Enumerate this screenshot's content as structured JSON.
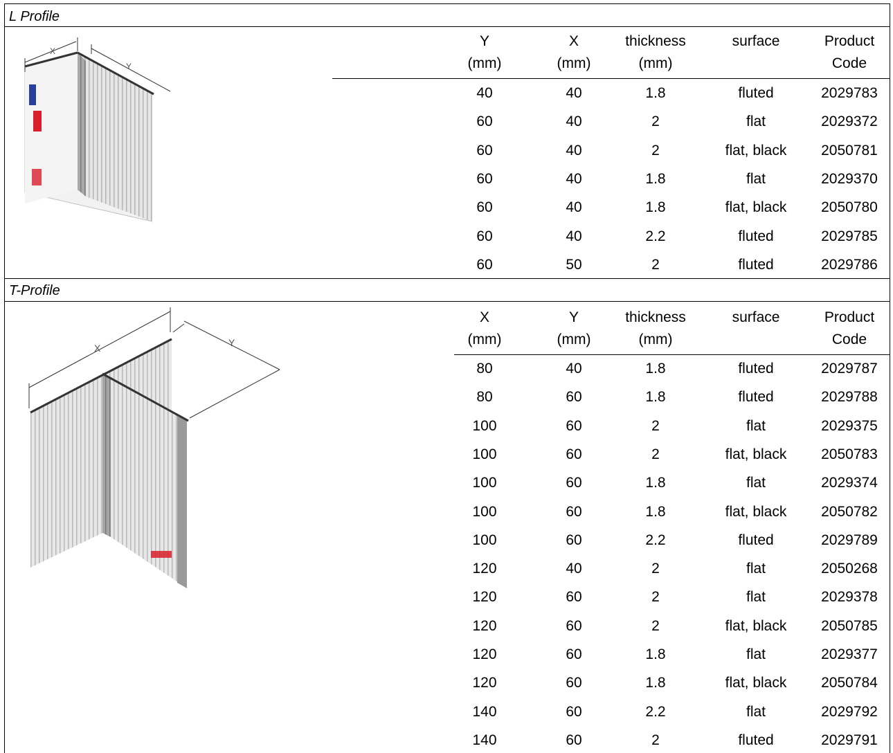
{
  "l_profile": {
    "title": "L Profile",
    "headers": [
      {
        "line1": "Y",
        "line2": "(mm)"
      },
      {
        "line1": "X",
        "line2": "(mm)"
      },
      {
        "line1": "thickness",
        "line2": "(mm)"
      },
      {
        "line1": "surface",
        "line2": ""
      },
      {
        "line1": "Product",
        "line2": "Code"
      }
    ],
    "diagram_labels": {
      "x": "X",
      "y": "Y"
    },
    "rows": [
      [
        "40",
        "40",
        "1.8",
        "fluted",
        "2029783"
      ],
      [
        "60",
        "40",
        "2",
        "flat",
        "2029372"
      ],
      [
        "60",
        "40",
        "2",
        "flat, black",
        "2050781"
      ],
      [
        "60",
        "40",
        "1.8",
        "flat",
        "2029370"
      ],
      [
        "60",
        "40",
        "1.8",
        "flat, black",
        "2050780"
      ],
      [
        "60",
        "40",
        "2.2",
        "fluted",
        "2029785"
      ],
      [
        "60",
        "50",
        "2",
        "fluted",
        "2029786"
      ]
    ]
  },
  "t_profile": {
    "title": "T-Profile",
    "headers": [
      {
        "line1": "X",
        "line2": "(mm)"
      },
      {
        "line1": "Y",
        "line2": "(mm)"
      },
      {
        "line1": "thickness",
        "line2": "(mm)"
      },
      {
        "line1": "surface",
        "line2": ""
      },
      {
        "line1": "Product",
        "line2": "Code"
      }
    ],
    "diagram_labels": {
      "x": "X",
      "y": "Y"
    },
    "rows": [
      [
        "80",
        "40",
        "1.8",
        "fluted",
        "2029787"
      ],
      [
        "80",
        "60",
        "1.8",
        "fluted",
        "2029788"
      ],
      [
        "100",
        "60",
        "2",
        "flat",
        "2029375"
      ],
      [
        "100",
        "60",
        "2",
        "flat, black",
        "2050783"
      ],
      [
        "100",
        "60",
        "1.8",
        "flat",
        "2029374"
      ],
      [
        "100",
        "60",
        "1.8",
        "flat, black",
        "2050782"
      ],
      [
        "100",
        "60",
        "2.2",
        "fluted",
        "2029789"
      ],
      [
        "120",
        "40",
        "2",
        "flat",
        "2050268"
      ],
      [
        "120",
        "60",
        "2",
        "flat",
        "2029378"
      ],
      [
        "120",
        "60",
        "2",
        "flat, black",
        "2050785"
      ],
      [
        "120",
        "60",
        "1.8",
        "flat",
        "2029377"
      ],
      [
        "120",
        "60",
        "1.8",
        "flat, black",
        "2050784"
      ],
      [
        "140",
        "60",
        "2.2",
        "flat",
        "2029792"
      ],
      [
        "140",
        "60",
        "2",
        "fluted",
        "2029791"
      ]
    ]
  },
  "colors": {
    "accent_red": "#d81e2a",
    "accent_blue": "#2a3f9a"
  }
}
